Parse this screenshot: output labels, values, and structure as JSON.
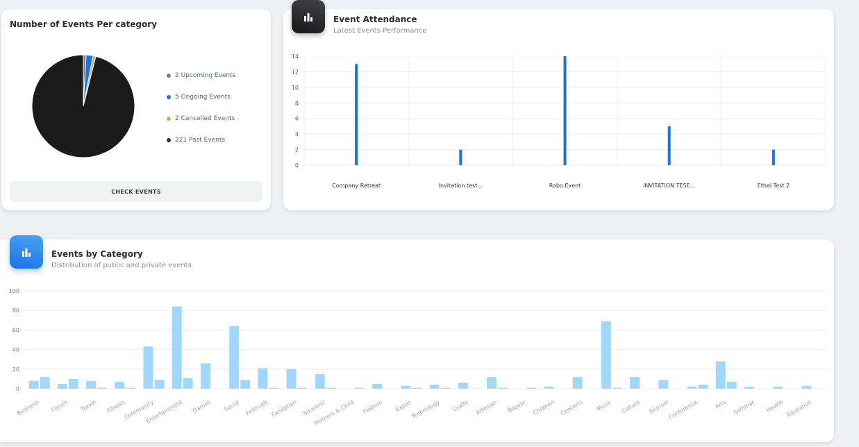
{
  "pie_card": {
    "title": "Number of Events Per category",
    "button_label": "CHECK EVENTS",
    "legend": [
      {
        "label": "2 Upcoming Events",
        "color": "#7b7f86"
      },
      {
        "label": "5 Ongoing Events",
        "color": "#1a73e8"
      },
      {
        "label": "2 Cancelled Events",
        "color": "#e0a060"
      },
      {
        "label": "221 Past Events",
        "color": "#2c2f3a"
      }
    ]
  },
  "attendance_card": {
    "title": "Event Attendance",
    "subtitle": "Latest Events Performance",
    "icon": "bar-chart-icon"
  },
  "category_card": {
    "title": "Events by Category",
    "subtitle": "Distribution of public and private events",
    "icon": "bar-chart-icon"
  },
  "chart_data": [
    {
      "type": "pie",
      "title": "Number of Events Per category",
      "labels": [
        "Upcoming Events",
        "Ongoing Events",
        "Cancelled Events",
        "Past Events"
      ],
      "values": [
        2,
        5,
        2,
        221
      ],
      "colors": [
        "#7b7f86",
        "#1a73e8",
        "#e0a060",
        "#1b1b1b"
      ]
    },
    {
      "type": "bar",
      "title": "Event Attendance",
      "categories": [
        "Company Retreat",
        "Invitation test...",
        "Robo Event",
        "INVITATION TESE...",
        "Ethel Test 2"
      ],
      "values": [
        13,
        2,
        14,
        5,
        2
      ],
      "ylim": [
        0,
        14
      ],
      "yticks": [
        0,
        2,
        4,
        6,
        8,
        10,
        12,
        14
      ],
      "color": "#1a73e8",
      "grid": true
    },
    {
      "type": "bar",
      "title": "Events by Category",
      "categories": [
        "Business",
        "Forum",
        "Travel",
        "Fitness",
        "Community",
        "Entertainment",
        "Games",
        "Social",
        "Festivals",
        "Exhibition",
        "Souvenir",
        "Mothers & Child",
        "Fashion",
        "Expos",
        "Technology",
        "Crafts",
        "Artesian",
        "Bazaar",
        "Children",
        "Concerts",
        "Music",
        "Culture",
        "Tourism",
        "Conference",
        "Arts",
        "Seminar",
        "Health",
        "Education"
      ],
      "series": [
        {
          "values": [
            8,
            5,
            8,
            7,
            43,
            84,
            26,
            64,
            21,
            20,
            15,
            0,
            5,
            3,
            4,
            6,
            12,
            0,
            2,
            12,
            69,
            12,
            9,
            2,
            28,
            2,
            2,
            3
          ]
        },
        {
          "values": [
            12,
            10,
            1,
            1,
            9,
            11,
            0,
            9,
            1,
            1,
            1,
            1,
            0,
            1,
            1,
            0,
            1,
            1,
            0,
            0,
            1,
            0,
            0,
            4,
            7,
            0,
            0,
            0
          ]
        }
      ],
      "ylim": [
        0,
        100
      ],
      "yticks": [
        0,
        20,
        40,
        60,
        80,
        100
      ],
      "color": "#9fd8fb",
      "grid": true
    }
  ]
}
